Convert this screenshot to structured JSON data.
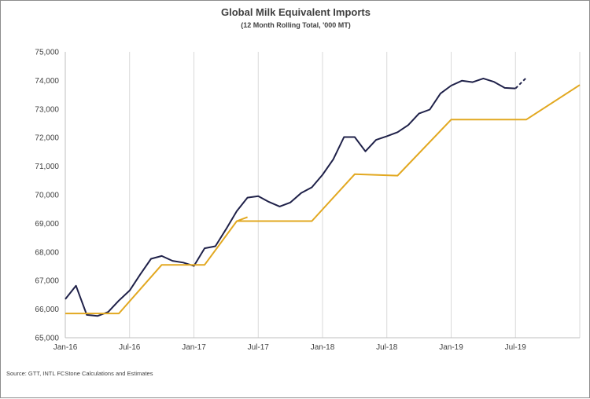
{
  "chart_data": {
    "type": "line",
    "title": "Global Milk Equivalent Imports",
    "subtitle": "(12 Month Rolling Total, '000 MT)",
    "source": "Source: GTT, INTL FCStone Calculations and Estimates",
    "x_tick_labels": [
      "Jan-16",
      "Jul-16",
      "Jan-17",
      "Jul-17",
      "Jan-18",
      "Jul-18",
      "Jan-19",
      "Jul-19"
    ],
    "y_tick_labels": [
      "65,000",
      "66,000",
      "67,000",
      "68,000",
      "69,000",
      "70,000",
      "71,000",
      "72,000",
      "73,000",
      "74,000",
      "75,000"
    ],
    "ylim": [
      65000,
      75000
    ],
    "x_range": [
      "2016-01",
      "2019-12"
    ],
    "grid": "vertical",
    "legend": "none",
    "series": [
      {
        "color": "#1f2149",
        "style": "solid",
        "points": [
          [
            "2016-01",
            66350
          ],
          [
            "2016-02",
            66820
          ],
          [
            "2016-03",
            65800
          ],
          [
            "2016-04",
            65760
          ],
          [
            "2016-05",
            65900
          ],
          [
            "2016-06",
            66300
          ],
          [
            "2016-07",
            66650
          ],
          [
            "2016-08",
            67220
          ],
          [
            "2016-09",
            67760
          ],
          [
            "2016-10",
            67860
          ],
          [
            "2016-11",
            67690
          ],
          [
            "2016-12",
            67630
          ],
          [
            "2017-01",
            67510
          ],
          [
            "2017-02",
            68130
          ],
          [
            "2017-03",
            68200
          ],
          [
            "2017-04",
            68800
          ],
          [
            "2017-05",
            69430
          ],
          [
            "2017-06",
            69900
          ],
          [
            "2017-07",
            69950
          ],
          [
            "2017-08",
            69750
          ],
          [
            "2017-09",
            69590
          ],
          [
            "2017-10",
            69730
          ],
          [
            "2017-11",
            70060
          ],
          [
            "2017-12",
            70260
          ],
          [
            "2018-01",
            70700
          ],
          [
            "2018-02",
            71240
          ],
          [
            "2018-03",
            72020
          ],
          [
            "2018-04",
            72020
          ],
          [
            "2018-05",
            71520
          ],
          [
            "2018-06",
            71920
          ],
          [
            "2018-07",
            72050
          ],
          [
            "2018-08",
            72190
          ],
          [
            "2018-09",
            72440
          ],
          [
            "2018-10",
            72840
          ],
          [
            "2018-11",
            72980
          ],
          [
            "2018-12",
            73540
          ],
          [
            "2019-01",
            73820
          ],
          [
            "2019-02",
            73990
          ],
          [
            "2019-03",
            73940
          ],
          [
            "2019-04",
            74070
          ],
          [
            "2019-05",
            73950
          ],
          [
            "2019-06",
            73740
          ],
          [
            "2019-07",
            73720
          ]
        ]
      },
      {
        "color": "#1f2149",
        "style": "dashed",
        "points": [
          [
            "2019-07",
            73720
          ],
          [
            "2019-08",
            74090
          ]
        ]
      },
      {
        "color": "#e2a820",
        "style": "solid",
        "points": [
          [
            "2016-01",
            65850
          ],
          [
            "2016-06",
            65850
          ],
          [
            "2016-10",
            67550
          ],
          [
            "2017-02",
            67550
          ],
          [
            "2017-05",
            69080
          ],
          [
            "2017-12",
            69080
          ],
          [
            "2018-04",
            70720
          ],
          [
            "2018-08",
            70670
          ],
          [
            "2019-01",
            72630
          ],
          [
            "2019-08",
            72630
          ],
          [
            "2020-01",
            73840
          ]
        ]
      },
      {
        "color": "#e2a820",
        "style": "solid",
        "points": [
          [
            "2017-05",
            69080
          ],
          [
            "2017-06",
            69220
          ]
        ]
      }
    ]
  }
}
